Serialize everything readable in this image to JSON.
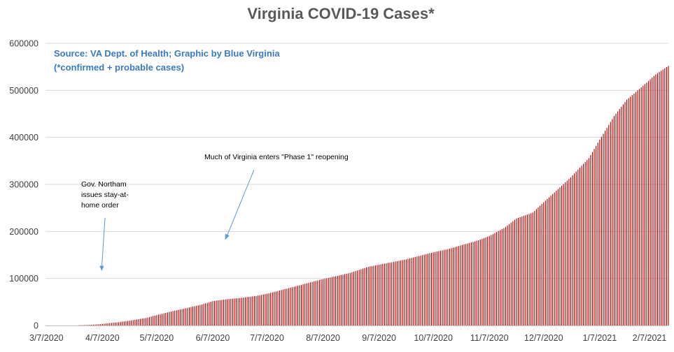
{
  "chart_data": {
    "type": "bar",
    "title": "Virginia COVID-19 Cases*",
    "xlabel": "",
    "ylabel": "",
    "ylim": [
      0,
      600000
    ],
    "y_ticks": [
      0,
      100000,
      200000,
      300000,
      400000,
      500000,
      600000
    ],
    "y_tick_labels": [
      "0",
      "100000",
      "200000",
      "300000",
      "400000",
      "500000",
      "600000"
    ],
    "x_range": [
      "3/7/2020",
      "2/14/2021"
    ],
    "x_tick_labels": [
      "3/7/2020",
      "4/7/2020",
      "5/7/2020",
      "6/7/2020",
      "7/7/2020",
      "8/7/2020",
      "9/7/2020",
      "10/7/2020",
      "11/7/2020",
      "12/7/2020",
      "1/7/2021",
      "2/7/2021"
    ],
    "grid": true,
    "legend": "none",
    "bar_color": "#c00000",
    "series": [
      {
        "x": [
          "3/7/2020",
          "3/15/2020",
          "3/22/2020",
          "3/29/2020",
          "4/1/2020",
          "4/7/2020",
          "4/15/2020",
          "4/22/2020",
          "5/1/2020",
          "5/7/2020",
          "5/15/2020",
          "5/22/2020",
          "6/1/2020",
          "6/7/2020",
          "6/15/2020",
          "6/22/2020",
          "7/1/2020",
          "7/7/2020",
          "7/15/2020",
          "7/22/2020",
          "8/1/2020",
          "8/7/2020",
          "8/15/2020",
          "8/22/2020",
          "9/1/2020",
          "9/7/2020",
          "9/15/2020",
          "9/22/2020",
          "10/1/2020",
          "10/7/2020",
          "10/15/2020",
          "10/22/2020",
          "11/1/2020",
          "11/7/2020",
          "11/15/2020",
          "11/22/2020",
          "12/1/2020",
          "12/7/2020",
          "12/15/2020",
          "12/22/2020",
          "1/1/2021",
          "1/7/2021",
          "1/15/2021",
          "1/22/2021",
          "2/1/2021",
          "2/7/2021",
          "2/14/2021"
        ],
        "values": [
          1,
          45,
          220,
          890,
          1480,
          3300,
          6500,
          10300,
          15850,
          22000,
          29700,
          35700,
          44600,
          51800,
          55800,
          58500,
          62800,
          67400,
          75400,
          82400,
          92800,
          98700,
          105600,
          111900,
          124700,
          129300,
          135100,
          140600,
          149700,
          155500,
          162300,
          170100,
          181200,
          190300,
          206800,
          227500,
          240100,
          262000,
          290100,
          315100,
          355800,
          395000,
          445400,
          480000,
          513000,
          534000,
          552000
        ]
      }
    ],
    "annotations": [
      {
        "text": [
          "Gov. Northam",
          "issues stay-at-",
          "home order"
        ]
      },
      {
        "text": [
          "Much of Virginia enters \"Phase 1\" reopening"
        ]
      }
    ],
    "source_note": [
      "Source: VA Dept. of Health; Graphic by Blue Virginia",
      "(*confirmed + probable cases)"
    ]
  },
  "colors": {
    "bar": "#c00000",
    "title": "#595959",
    "source": "#3a7abf",
    "arrow": "#5b9bd5",
    "gridline": "#d9d9d9"
  }
}
